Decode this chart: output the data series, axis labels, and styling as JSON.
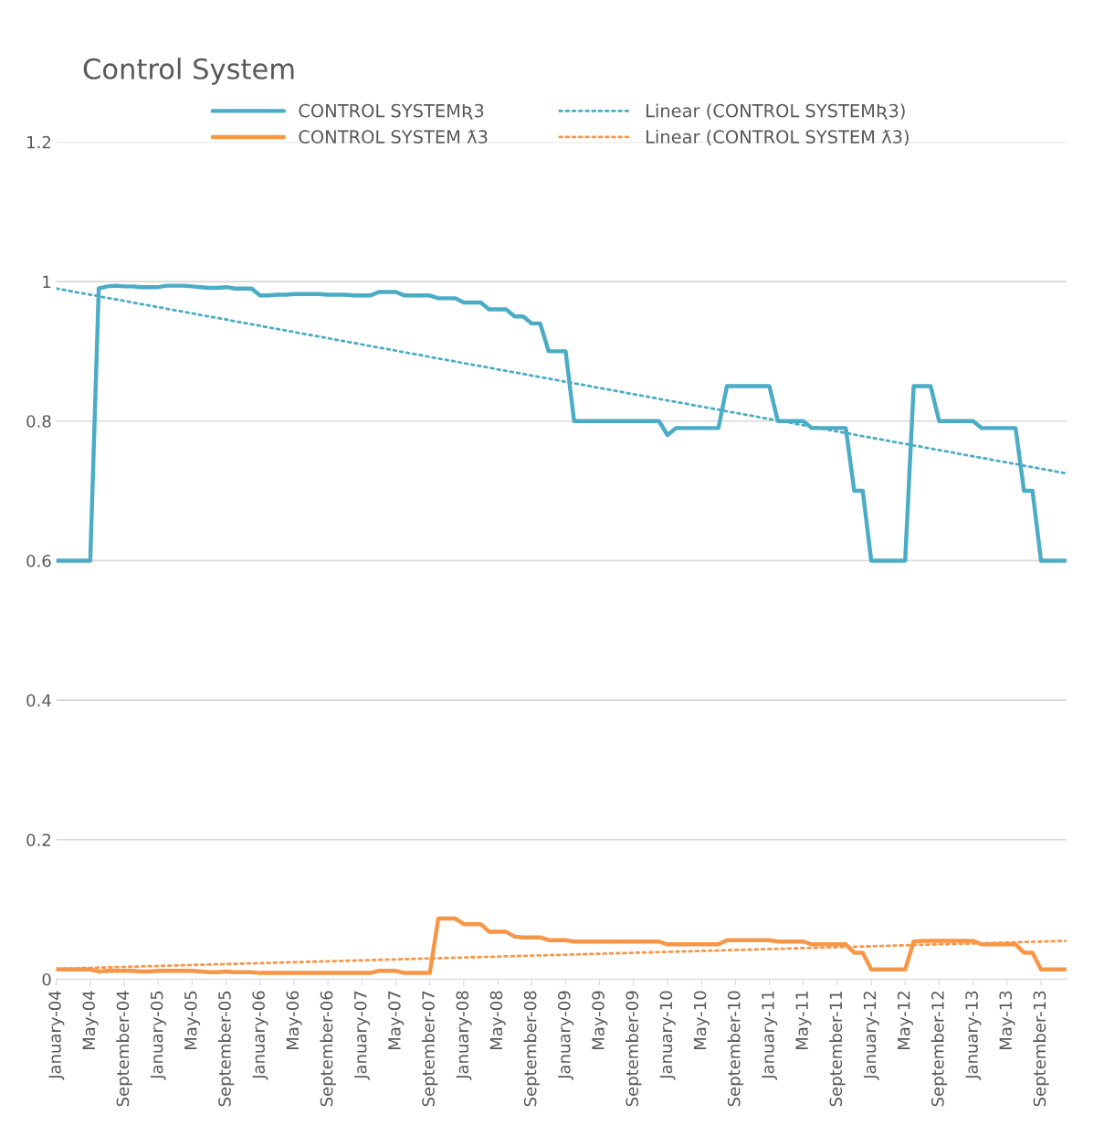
{
  "chart_data": {
    "type": "line",
    "title": "Control System",
    "x": [
      "2004-01",
      "2004-02",
      "2004-03",
      "2004-04",
      "2004-05",
      "2004-06",
      "2004-07",
      "2004-08",
      "2004-09",
      "2004-10",
      "2004-11",
      "2004-12",
      "2005-01",
      "2005-02",
      "2005-03",
      "2005-04",
      "2005-05",
      "2005-06",
      "2005-07",
      "2005-08",
      "2005-09",
      "2005-10",
      "2005-11",
      "2005-12",
      "2006-01",
      "2006-02",
      "2006-03",
      "2006-04",
      "2006-05",
      "2006-06",
      "2006-07",
      "2006-08",
      "2006-09",
      "2006-10",
      "2006-11",
      "2006-12",
      "2007-01",
      "2007-02",
      "2007-03",
      "2007-04",
      "2007-05",
      "2007-06",
      "2007-07",
      "2007-08",
      "2007-09",
      "2007-10",
      "2007-11",
      "2007-12",
      "2008-01",
      "2008-02",
      "2008-03",
      "2008-04",
      "2008-05",
      "2008-06",
      "2008-07",
      "2008-08",
      "2008-09",
      "2008-10",
      "2008-11",
      "2008-12",
      "2009-01",
      "2009-02",
      "2009-03",
      "2009-04",
      "2009-05",
      "2009-06",
      "2009-07",
      "2009-08",
      "2009-09",
      "2009-10",
      "2009-11",
      "2009-12",
      "2010-01",
      "2010-02",
      "2010-03",
      "2010-04",
      "2010-05",
      "2010-06",
      "2010-07",
      "2010-08",
      "2010-09",
      "2010-10",
      "2010-11",
      "2010-12",
      "2011-01",
      "2011-02",
      "2011-03",
      "2011-04",
      "2011-05",
      "2011-06",
      "2011-07",
      "2011-08",
      "2011-09",
      "2011-10",
      "2011-11",
      "2011-12",
      "2012-01",
      "2012-02",
      "2012-03",
      "2012-04",
      "2012-05",
      "2012-06",
      "2012-07",
      "2012-08",
      "2012-09",
      "2012-10",
      "2012-11",
      "2012-12",
      "2013-01",
      "2013-02",
      "2013-03",
      "2013-04",
      "2013-05",
      "2013-06",
      "2013-07",
      "2013-08",
      "2013-09",
      "2013-10",
      "2013-11",
      "2013-12"
    ],
    "series": [
      {
        "name": "CONTROL SYSTEMƦ3",
        "color": "#4bacc6",
        "line_style": "solid",
        "values": [
          0.6,
          0.6,
          0.6,
          0.6,
          0.6,
          0.99,
          0.993,
          0.994,
          0.993,
          0.993,
          0.992,
          0.992,
          0.992,
          0.994,
          0.994,
          0.994,
          0.993,
          0.992,
          0.991,
          0.991,
          0.992,
          0.99,
          0.99,
          0.99,
          0.98,
          0.98,
          0.981,
          0.981,
          0.982,
          0.982,
          0.982,
          0.982,
          0.981,
          0.981,
          0.981,
          0.98,
          0.98,
          0.98,
          0.985,
          0.985,
          0.985,
          0.98,
          0.98,
          0.98,
          0.98,
          0.976,
          0.976,
          0.976,
          0.97,
          0.97,
          0.97,
          0.96,
          0.96,
          0.96,
          0.95,
          0.95,
          0.94,
          0.94,
          0.9,
          0.9,
          0.9,
          0.8,
          0.8,
          0.8,
          0.8,
          0.8,
          0.8,
          0.8,
          0.8,
          0.8,
          0.8,
          0.8,
          0.78,
          0.79,
          0.79,
          0.79,
          0.79,
          0.79,
          0.79,
          0.85,
          0.85,
          0.85,
          0.85,
          0.85,
          0.85,
          0.8,
          0.8,
          0.8,
          0.8,
          0.79,
          0.79,
          0.79,
          0.79,
          0.79,
          0.7,
          0.7,
          0.6,
          0.6,
          0.6,
          0.6,
          0.6,
          0.85,
          0.85,
          0.85,
          0.8,
          0.8,
          0.8,
          0.8,
          0.8,
          0.79,
          0.79,
          0.79,
          0.79,
          0.79,
          0.7,
          0.7,
          0.6,
          0.6,
          0.6,
          0.6
        ]
      },
      {
        "name": "CONTROL SYSTEM ƛ3",
        "color": "#f79646",
        "line_style": "solid",
        "values": [
          0.014,
          0.014,
          0.014,
          0.014,
          0.014,
          0.011,
          0.012,
          0.012,
          0.012,
          0.012,
          0.011,
          0.011,
          0.012,
          0.012,
          0.012,
          0.012,
          0.012,
          0.011,
          0.01,
          0.01,
          0.011,
          0.01,
          0.01,
          0.01,
          0.009,
          0.009,
          0.009,
          0.009,
          0.009,
          0.009,
          0.009,
          0.009,
          0.009,
          0.009,
          0.009,
          0.009,
          0.009,
          0.009,
          0.012,
          0.012,
          0.012,
          0.009,
          0.009,
          0.009,
          0.009,
          0.087,
          0.087,
          0.087,
          0.079,
          0.079,
          0.079,
          0.068,
          0.068,
          0.068,
          0.061,
          0.06,
          0.06,
          0.06,
          0.056,
          0.056,
          0.056,
          0.054,
          0.054,
          0.054,
          0.054,
          0.054,
          0.054,
          0.054,
          0.054,
          0.054,
          0.054,
          0.054,
          0.05,
          0.05,
          0.05,
          0.05,
          0.05,
          0.05,
          0.05,
          0.056,
          0.056,
          0.056,
          0.056,
          0.056,
          0.056,
          0.054,
          0.054,
          0.054,
          0.054,
          0.05,
          0.05,
          0.05,
          0.05,
          0.05,
          0.038,
          0.038,
          0.014,
          0.014,
          0.014,
          0.014,
          0.014,
          0.054,
          0.055,
          0.055,
          0.055,
          0.055,
          0.055,
          0.055,
          0.055,
          0.05,
          0.05,
          0.05,
          0.05,
          0.05,
          0.038,
          0.038,
          0.014,
          0.014,
          0.014,
          0.014
        ]
      },
      {
        "name": "Linear (CONTROL SYSTEMƦ3)",
        "color": "#4bacc6",
        "line_style": "dotted",
        "x": [
          "2004-01",
          "2013-12"
        ],
        "values": [
          0.99,
          0.725
        ]
      },
      {
        "name": "Linear (CONTROL SYSTEM ƛ3)",
        "color": "#f79646",
        "line_style": "dotted",
        "x": [
          "2004-01",
          "2013-12"
        ],
        "values": [
          0.015,
          0.055
        ]
      }
    ],
    "xlim": [
      "2004-01",
      "2013-12"
    ],
    "xticks": [
      {
        "value": "2004-01",
        "label": "January-04"
      },
      {
        "value": "2004-05",
        "label": "May-04"
      },
      {
        "value": "2004-09",
        "label": "September-04"
      },
      {
        "value": "2005-01",
        "label": "January-05"
      },
      {
        "value": "2005-05",
        "label": "May-05"
      },
      {
        "value": "2005-09",
        "label": "September-05"
      },
      {
        "value": "2006-01",
        "label": "January-06"
      },
      {
        "value": "2006-05",
        "label": "May-06"
      },
      {
        "value": "2006-09",
        "label": "September-06"
      },
      {
        "value": "2007-01",
        "label": "January-07"
      },
      {
        "value": "2007-05",
        "label": "May-07"
      },
      {
        "value": "2007-09",
        "label": "September-07"
      },
      {
        "value": "2008-01",
        "label": "January-08"
      },
      {
        "value": "2008-05",
        "label": "May-08"
      },
      {
        "value": "2008-09",
        "label": "September-08"
      },
      {
        "value": "2009-01",
        "label": "January-09"
      },
      {
        "value": "2009-05",
        "label": "May-09"
      },
      {
        "value": "2009-09",
        "label": "September-09"
      },
      {
        "value": "2010-01",
        "label": "January-10"
      },
      {
        "value": "2010-05",
        "label": "May-10"
      },
      {
        "value": "2010-09",
        "label": "September-10"
      },
      {
        "value": "2011-01",
        "label": "January-11"
      },
      {
        "value": "2011-05",
        "label": "May-11"
      },
      {
        "value": "2011-09",
        "label": "September-11"
      },
      {
        "value": "2012-01",
        "label": "January-12"
      },
      {
        "value": "2012-05",
        "label": "May-12"
      },
      {
        "value": "2012-09",
        "label": "September-12"
      },
      {
        "value": "2013-01",
        "label": "January-13"
      },
      {
        "value": "2013-05",
        "label": "May-13"
      },
      {
        "value": "2013-09",
        "label": "September-13"
      }
    ],
    "ylim": [
      0,
      1.2
    ],
    "yticks": [
      0,
      0.2,
      0.4,
      0.6,
      0.8,
      1,
      1.2
    ],
    "grid": "y",
    "legend": "top"
  }
}
